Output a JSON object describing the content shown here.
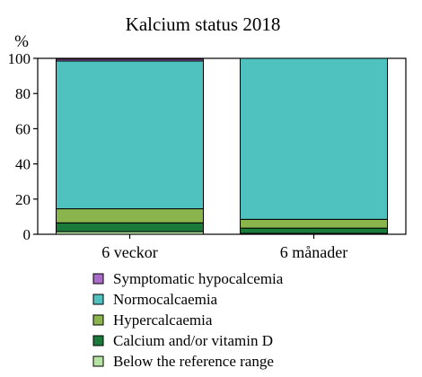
{
  "chart_data": {
    "type": "bar",
    "stacked": true,
    "title": "Kalcium status 2018",
    "ylabel": "%",
    "xlabel": "",
    "ylim": [
      0,
      100
    ],
    "yticks": [
      0,
      20,
      40,
      60,
      80,
      100
    ],
    "grid": false,
    "legend_position": "bottom",
    "categories": [
      "6 veckor",
      "6 månader"
    ],
    "series": [
      {
        "name": "Below the reference range",
        "color": "#b5e3a1",
        "values": [
          1.5,
          0.5
        ]
      },
      {
        "name": "Calcium and/or vitamin D",
        "color": "#1a7a3a",
        "values": [
          5,
          3
        ]
      },
      {
        "name": "Hypercalcaemia",
        "color": "#8ab54c",
        "values": [
          8,
          5
        ]
      },
      {
        "name": "Normocalcaemia",
        "color": "#4fc2c0",
        "values": [
          84,
          91.5
        ]
      },
      {
        "name": "Symptomatic hypocalcemia",
        "color": "#a86bc8",
        "values": [
          1,
          0
        ]
      }
    ],
    "legend_order": [
      "Symptomatic hypocalcemia",
      "Normocalcaemia",
      "Hypercalcaemia",
      "Calcium and/or vitamin D",
      "Below the reference range"
    ]
  }
}
